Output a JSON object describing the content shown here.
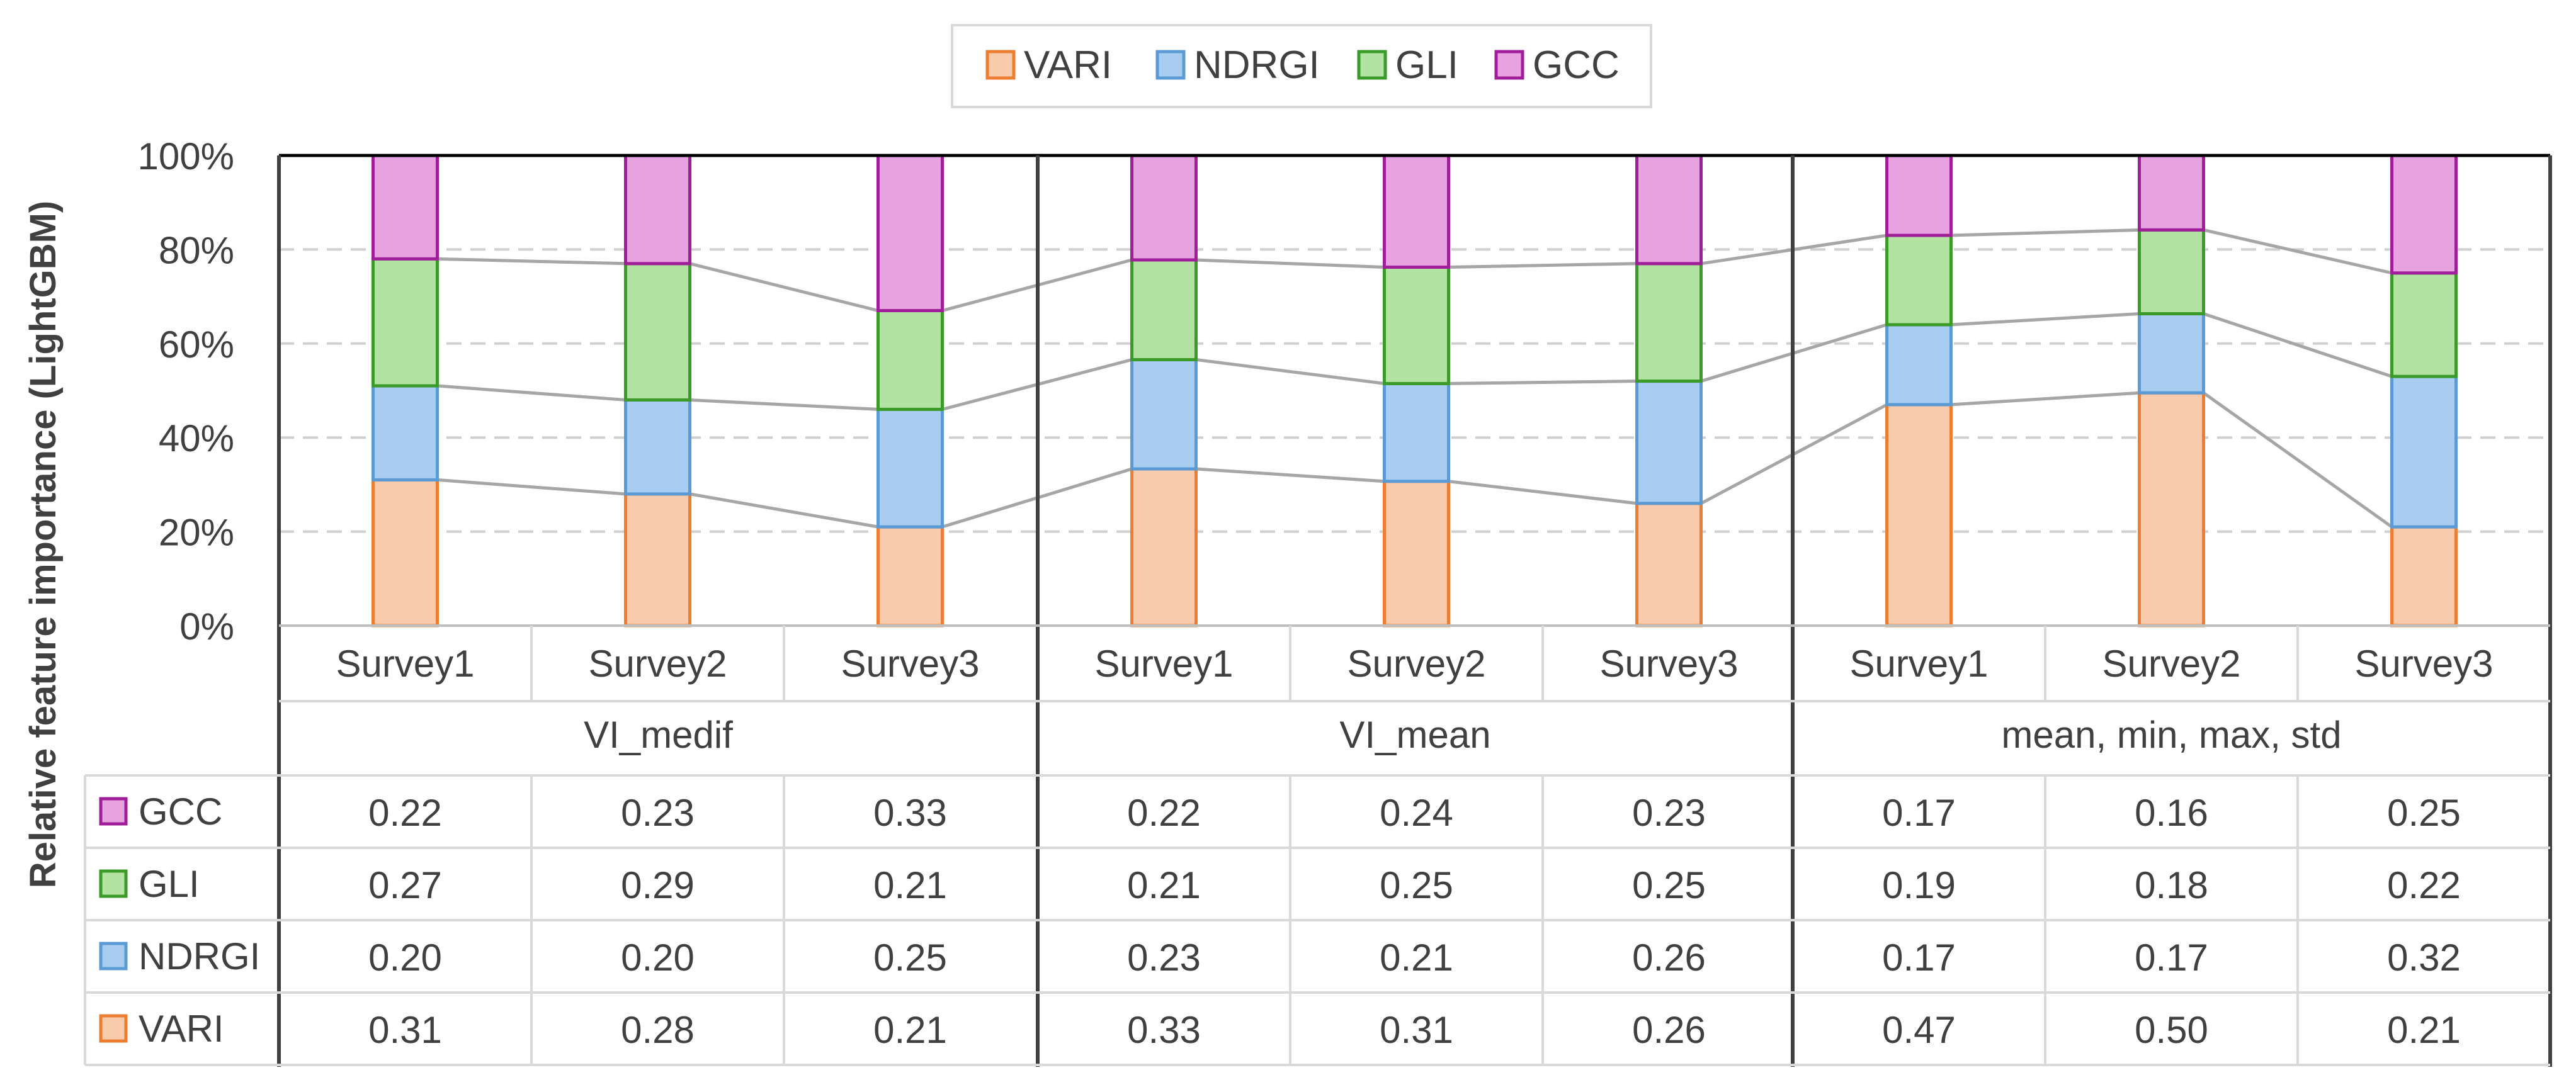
{
  "chart_data": {
    "type": "bar",
    "stacked": "percent",
    "ylabel": "Relative feature importance (LightGBM)",
    "ylim": [
      0,
      100
    ],
    "yticks": [
      "0%",
      "20%",
      "40%",
      "60%",
      "80%",
      "100%"
    ],
    "gridlines": true,
    "legend_position": "top",
    "groups": [
      {
        "name": "VI_medif",
        "categories": [
          "Survey1",
          "Survey2",
          "Survey3"
        ]
      },
      {
        "name": "VI_mean",
        "categories": [
          "Survey1",
          "Survey2",
          "Survey3"
        ]
      },
      {
        "name": "mean, min, max, std",
        "categories": [
          "Survey1",
          "Survey2",
          "Survey3"
        ]
      }
    ],
    "series": [
      {
        "name": "VARI",
        "color": "#f8cbad",
        "edge": "#ed7d31",
        "values": [
          0.31,
          0.28,
          0.21,
          0.33,
          0.31,
          0.26,
          0.47,
          0.5,
          0.21
        ]
      },
      {
        "name": "NDRGI",
        "color": "#a9cdf0",
        "edge": "#5b9bd5",
        "values": [
          0.2,
          0.2,
          0.25,
          0.23,
          0.21,
          0.26,
          0.17,
          0.17,
          0.32
        ]
      },
      {
        "name": "GLI",
        "color": "#b3e3a2",
        "edge": "#3a9b28",
        "values": [
          0.27,
          0.29,
          0.21,
          0.21,
          0.25,
          0.25,
          0.19,
          0.18,
          0.22
        ]
      },
      {
        "name": "GCC",
        "color": "#e6a3df",
        "edge": "#a01e9a",
        "values": [
          0.22,
          0.23,
          0.33,
          0.22,
          0.24,
          0.23,
          0.17,
          0.16,
          0.25
        ]
      }
    ],
    "table_rows": [
      {
        "name": "GCC",
        "cells": [
          "0.22",
          "0.23",
          "0.33",
          "0.22",
          "0.24",
          "0.23",
          "0.17",
          "0.16",
          "0.25"
        ]
      },
      {
        "name": "GLI",
        "cells": [
          "0.27",
          "0.29",
          "0.21",
          "0.21",
          "0.25",
          "0.25",
          "0.19",
          "0.18",
          "0.22"
        ]
      },
      {
        "name": "NDRGI",
        "cells": [
          "0.20",
          "0.20",
          "0.25",
          "0.23",
          "0.21",
          "0.26",
          "0.17",
          "0.17",
          "0.32"
        ]
      },
      {
        "name": "VARI",
        "cells": [
          "0.31",
          "0.28",
          "0.21",
          "0.33",
          "0.31",
          "0.26",
          "0.47",
          "0.50",
          "0.21"
        ]
      }
    ]
  }
}
